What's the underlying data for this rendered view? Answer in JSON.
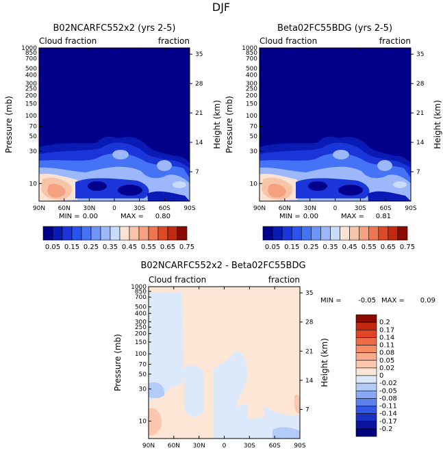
{
  "supertitle": "DJF",
  "chart_data": [
    {
      "type": "heatmap",
      "title": "B02NCARFC552x2 (yrs 2-5)",
      "left_label": "Cloud fraction",
      "right_label": "fraction",
      "ylabel": "Pressure (mb)",
      "y2label": "Height (km)",
      "x_ticks": [
        "90N",
        "60N",
        "30N",
        "0",
        "30S",
        "60S",
        "90S"
      ],
      "y_ticks": [
        "10",
        "30",
        "50",
        "70",
        "100",
        "150",
        "200",
        "250",
        "300",
        "400",
        "500",
        "700",
        "850",
        "1000"
      ],
      "y2_ticks": [
        "35",
        "28",
        "21",
        "14",
        "7"
      ],
      "min_label": "MIN =",
      "min_value": "0.00",
      "max_label": "MAX =",
      "max_value": "0.80",
      "colorbar": {
        "labels": [
          "0.05",
          "0.15",
          "0.25",
          "0.35",
          "0.45",
          "0.55",
          "0.65",
          "0.75"
        ],
        "colors": [
          "#00008a",
          "#0a1ab5",
          "#1a36d9",
          "#2a52ee",
          "#4573f5",
          "#6e96f8",
          "#9cb8fa",
          "#c9dcfb",
          "#fbe2d3",
          "#f8c4a8",
          "#f5a180",
          "#ee7650",
          "#df4a26",
          "#c42a10",
          "#8a0a00"
        ]
      }
    },
    {
      "type": "heatmap",
      "title": "Beta02FC55BDG (yrs 2-5)",
      "left_label": "Cloud fraction",
      "right_label": "fraction",
      "ylabel": "Pressure (mb)",
      "y2label": "Height (km)",
      "x_ticks": [
        "90N",
        "60N",
        "30N",
        "0",
        "30S",
        "60S",
        "90S"
      ],
      "y_ticks": [
        "10",
        "30",
        "50",
        "70",
        "100",
        "150",
        "200",
        "250",
        "300",
        "400",
        "500",
        "700",
        "850",
        "1000"
      ],
      "y2_ticks": [
        "35",
        "28",
        "21",
        "14",
        "7"
      ],
      "min_label": "MIN =",
      "min_value": "0.00",
      "max_label": "MAX =",
      "max_value": "0.81",
      "colorbar": {
        "labels": [
          "0.05",
          "0.15",
          "0.25",
          "0.35",
          "0.45",
          "0.55",
          "0.65",
          "0.75"
        ],
        "colors": [
          "#00008a",
          "#0a1ab5",
          "#1a36d9",
          "#2a52ee",
          "#4573f5",
          "#6e96f8",
          "#9cb8fa",
          "#c9dcfb",
          "#fbe2d3",
          "#f8c4a8",
          "#f5a180",
          "#ee7650",
          "#df4a26",
          "#c42a10",
          "#8a0a00"
        ]
      }
    },
    {
      "type": "heatmap",
      "title": "B02NCARFC552x2 - Beta02FC55BDG",
      "left_label": "Cloud fraction",
      "right_label": "fraction",
      "ylabel": "Pressure (mb)",
      "y2label": "Height (km)",
      "x_ticks": [
        "90N",
        "60N",
        "30N",
        "0",
        "30S",
        "60S",
        "90S"
      ],
      "y_ticks": [
        "10",
        "30",
        "50",
        "70",
        "100",
        "150",
        "200",
        "250",
        "300",
        "400",
        "500",
        "700",
        "850",
        "1000"
      ],
      "y2_ticks": [
        "35",
        "28",
        "21",
        "14",
        "7"
      ],
      "min_label": "MIN =",
      "min_value": "-0.05",
      "max_label": "MAX =",
      "max_value": "0.09",
      "colorbar": {
        "labels": [
          "0.2",
          "0.17",
          "0.14",
          "0.11",
          "0.08",
          "0.05",
          "0.02",
          "0",
          "-0.02",
          "-0.05",
          "-0.08",
          "-0.11",
          "-0.14",
          "-0.17",
          "-0.2"
        ],
        "colors": [
          "#8a0a00",
          "#c22810",
          "#df4626",
          "#ee6c45",
          "#f58e68",
          "#f8ab8a",
          "#fbc8ad",
          "#fde6d6",
          "#dbe9fb",
          "#b3cbf8",
          "#8aa9f4",
          "#5c82ee",
          "#3357e2",
          "#1a30c4",
          "#0a149c",
          "#00007a"
        ]
      }
    }
  ]
}
